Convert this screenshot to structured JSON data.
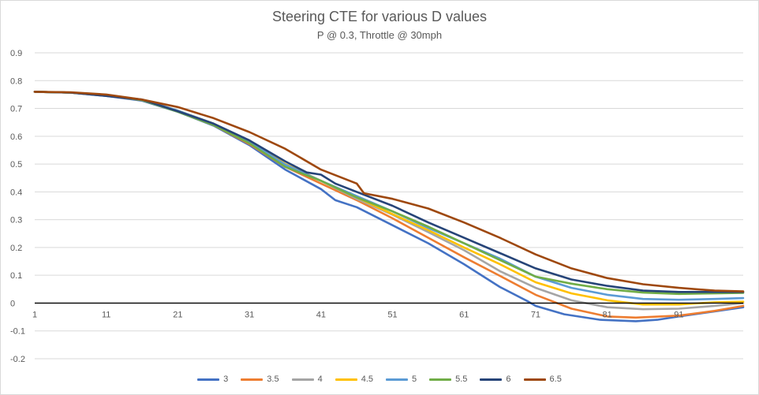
{
  "chart_data": {
    "type": "line",
    "title": "Steering CTE for various D values",
    "subtitle": "P @ 0.3, Throttle @ 30mph",
    "xlabel": "",
    "ylabel": "",
    "x_ticks": [
      "1",
      "11",
      "21",
      "31",
      "41",
      "51",
      "61",
      "71",
      "81",
      "91"
    ],
    "y_ticks": [
      "0.9",
      "0.8",
      "0.7",
      "0.6",
      "0.5",
      "0.4",
      "0.3",
      "0.2",
      "0.1",
      "0",
      "-0.1",
      "-0.2"
    ],
    "xlim": [
      1,
      100
    ],
    "ylim": [
      -0.2,
      0.9
    ],
    "grid": true,
    "legend": "bottom",
    "series": [
      {
        "name": "3",
        "color": "#4472C4",
        "points": [
          [
            1,
            0.76
          ],
          [
            6,
            0.757
          ],
          [
            11,
            0.745
          ],
          [
            16,
            0.728
          ],
          [
            21,
            0.688
          ],
          [
            26,
            0.638
          ],
          [
            31,
            0.568
          ],
          [
            36,
            0.48
          ],
          [
            41,
            0.41
          ],
          [
            43,
            0.37
          ],
          [
            46,
            0.345
          ],
          [
            51,
            0.28
          ],
          [
            56,
            0.215
          ],
          [
            61,
            0.14
          ],
          [
            66,
            0.058
          ],
          [
            70,
            0.005
          ],
          [
            71,
            -0.01
          ],
          [
            75,
            -0.04
          ],
          [
            80,
            -0.06
          ],
          [
            85,
            -0.065
          ],
          [
            88,
            -0.06
          ],
          [
            91,
            -0.048
          ],
          [
            96,
            -0.03
          ],
          [
            100,
            -0.015
          ]
        ]
      },
      {
        "name": "3.5",
        "color": "#ED7D31",
        "points": [
          [
            1,
            0.76
          ],
          [
            6,
            0.757
          ],
          [
            11,
            0.746
          ],
          [
            16,
            0.73
          ],
          [
            21,
            0.69
          ],
          [
            26,
            0.64
          ],
          [
            31,
            0.572
          ],
          [
            36,
            0.49
          ],
          [
            41,
            0.43
          ],
          [
            46,
            0.37
          ],
          [
            51,
            0.305
          ],
          [
            56,
            0.235
          ],
          [
            61,
            0.165
          ],
          [
            66,
            0.098
          ],
          [
            71,
            0.03
          ],
          [
            76,
            -0.02
          ],
          [
            81,
            -0.048
          ],
          [
            85,
            -0.052
          ],
          [
            91,
            -0.045
          ],
          [
            96,
            -0.028
          ],
          [
            100,
            -0.01
          ]
        ]
      },
      {
        "name": "4",
        "color": "#A5A5A5",
        "points": [
          [
            1,
            0.76
          ],
          [
            6,
            0.757
          ],
          [
            11,
            0.747
          ],
          [
            16,
            0.73
          ],
          [
            21,
            0.692
          ],
          [
            26,
            0.645
          ],
          [
            31,
            0.585
          ],
          [
            36,
            0.5
          ],
          [
            41,
            0.44
          ],
          [
            46,
            0.375
          ],
          [
            51,
            0.318
          ],
          [
            56,
            0.255
          ],
          [
            61,
            0.19
          ],
          [
            66,
            0.115
          ],
          [
            71,
            0.055
          ],
          [
            76,
            0.01
          ],
          [
            81,
            -0.015
          ],
          [
            86,
            -0.022
          ],
          [
            91,
            -0.02
          ],
          [
            96,
            -0.01
          ],
          [
            100,
            0.0
          ]
        ]
      },
      {
        "name": "4.5",
        "color": "#FFC000",
        "points": [
          [
            1,
            0.76
          ],
          [
            6,
            0.757
          ],
          [
            11,
            0.747
          ],
          [
            16,
            0.731
          ],
          [
            21,
            0.692
          ],
          [
            26,
            0.645
          ],
          [
            31,
            0.582
          ],
          [
            36,
            0.5
          ],
          [
            41,
            0.44
          ],
          [
            46,
            0.38
          ],
          [
            51,
            0.32
          ],
          [
            56,
            0.262
          ],
          [
            61,
            0.2
          ],
          [
            66,
            0.14
          ],
          [
            71,
            0.075
          ],
          [
            76,
            0.035
          ],
          [
            81,
            0.01
          ],
          [
            86,
            -0.005
          ],
          [
            91,
            -0.005
          ],
          [
            96,
            0.003
          ],
          [
            100,
            0.005
          ]
        ]
      },
      {
        "name": "5",
        "color": "#5B9BD5",
        "points": [
          [
            1,
            0.76
          ],
          [
            6,
            0.757
          ],
          [
            11,
            0.747
          ],
          [
            16,
            0.732
          ],
          [
            21,
            0.692
          ],
          [
            26,
            0.645
          ],
          [
            31,
            0.58
          ],
          [
            36,
            0.498
          ],
          [
            41,
            0.44
          ],
          [
            46,
            0.385
          ],
          [
            51,
            0.33
          ],
          [
            56,
            0.27
          ],
          [
            61,
            0.215
          ],
          [
            66,
            0.16
          ],
          [
            71,
            0.095
          ],
          [
            76,
            0.055
          ],
          [
            81,
            0.03
          ],
          [
            86,
            0.015
          ],
          [
            91,
            0.012
          ],
          [
            96,
            0.015
          ],
          [
            100,
            0.018
          ]
        ]
      },
      {
        "name": "5.5",
        "color": "#70AD47",
        "points": [
          [
            1,
            0.76
          ],
          [
            6,
            0.757
          ],
          [
            11,
            0.747
          ],
          [
            16,
            0.73
          ],
          [
            21,
            0.688
          ],
          [
            26,
            0.64
          ],
          [
            31,
            0.575
          ],
          [
            36,
            0.49
          ],
          [
            41,
            0.44
          ],
          [
            46,
            0.38
          ],
          [
            51,
            0.33
          ],
          [
            56,
            0.275
          ],
          [
            61,
            0.215
          ],
          [
            66,
            0.155
          ],
          [
            71,
            0.095
          ],
          [
            76,
            0.07
          ],
          [
            81,
            0.05
          ],
          [
            86,
            0.038
          ],
          [
            91,
            0.033
          ],
          [
            96,
            0.035
          ],
          [
            100,
            0.037
          ]
        ]
      },
      {
        "name": "6",
        "color": "#264478",
        "points": [
          [
            1,
            0.76
          ],
          [
            6,
            0.757
          ],
          [
            11,
            0.745
          ],
          [
            16,
            0.732
          ],
          [
            21,
            0.69
          ],
          [
            26,
            0.645
          ],
          [
            31,
            0.585
          ],
          [
            36,
            0.51
          ],
          [
            39,
            0.47
          ],
          [
            41,
            0.462
          ],
          [
            43,
            0.43
          ],
          [
            46,
            0.4
          ],
          [
            51,
            0.35
          ],
          [
            56,
            0.29
          ],
          [
            61,
            0.235
          ],
          [
            66,
            0.18
          ],
          [
            71,
            0.125
          ],
          [
            76,
            0.085
          ],
          [
            81,
            0.062
          ],
          [
            86,
            0.045
          ],
          [
            91,
            0.04
          ],
          [
            96,
            0.04
          ],
          [
            100,
            0.04
          ]
        ]
      },
      {
        "name": "6.5",
        "color": "#9E480E",
        "points": [
          [
            1,
            0.76
          ],
          [
            6,
            0.758
          ],
          [
            11,
            0.75
          ],
          [
            16,
            0.732
          ],
          [
            21,
            0.705
          ],
          [
            26,
            0.665
          ],
          [
            31,
            0.615
          ],
          [
            36,
            0.555
          ],
          [
            41,
            0.48
          ],
          [
            46,
            0.43
          ],
          [
            47,
            0.395
          ],
          [
            51,
            0.375
          ],
          [
            56,
            0.34
          ],
          [
            61,
            0.29
          ],
          [
            66,
            0.235
          ],
          [
            71,
            0.175
          ],
          [
            76,
            0.125
          ],
          [
            81,
            0.09
          ],
          [
            86,
            0.068
          ],
          [
            91,
            0.055
          ],
          [
            96,
            0.045
          ],
          [
            100,
            0.042
          ]
        ]
      }
    ]
  }
}
